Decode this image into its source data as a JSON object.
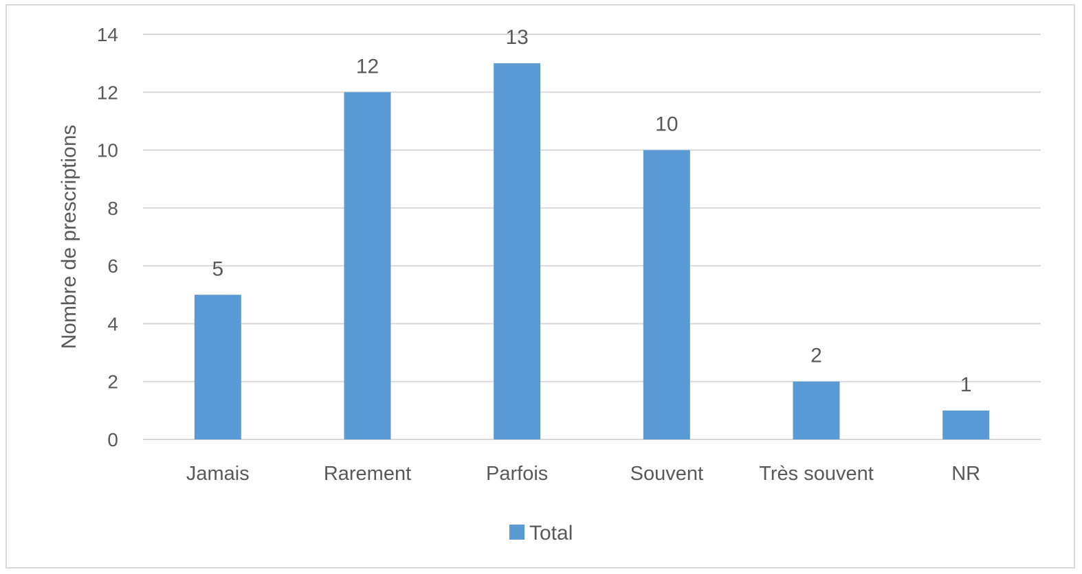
{
  "chart_data": {
    "type": "bar",
    "categories": [
      "Jamais",
      "Rarement",
      "Parfois",
      "Souvent",
      "Très souvent",
      "NR"
    ],
    "series": [
      {
        "name": "Total",
        "values": [
          5,
          12,
          13,
          10,
          2,
          1
        ],
        "color": "#5b9bd5"
      }
    ],
    "data_labels": [
      "5",
      "12",
      "13",
      "10",
      "2",
      "1"
    ],
    "ylabel": "Nombre de prescriptions",
    "xlabel": "",
    "ylim": [
      0,
      14
    ],
    "yticks": [
      0,
      2,
      4,
      6,
      8,
      10,
      12,
      14
    ],
    "grid": true,
    "legend": {
      "position": "bottom",
      "label": "Total"
    },
    "colors": {
      "bar": "#5b9bd5",
      "grid": "#d9d9d9",
      "text": "#595959"
    }
  }
}
